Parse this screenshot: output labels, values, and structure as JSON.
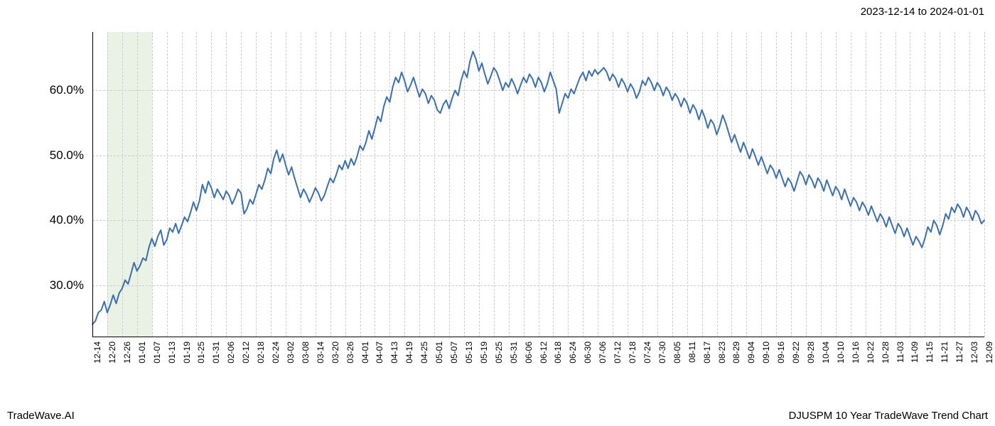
{
  "header": {
    "date_range": "2023-12-14 to 2024-01-01"
  },
  "footer": {
    "left": "TradeWave.AI",
    "right": "DJUSPM 10 Year TradeWave Trend Chart"
  },
  "chart": {
    "type": "line",
    "background_color": "#ffffff",
    "grid_color": "#cccccc",
    "grid_dash": "3,3",
    "axis_color": "#000000",
    "line_color": "#3a6fb0",
    "line_width": 2,
    "highlight_band": {
      "fill": "#d8e8d0",
      "opacity": 0.55,
      "x_start_index": 1,
      "x_end_index": 4
    },
    "y_axis": {
      "min": 22,
      "max": 69,
      "ticks": [
        30,
        40,
        50,
        60
      ],
      "tick_labels": [
        "30.0%",
        "40.0%",
        "50.0%",
        "60.0%"
      ],
      "label_fontsize": 17
    },
    "x_axis": {
      "tick_labels": [
        "12-14",
        "12-20",
        "12-26",
        "01-01",
        "01-07",
        "01-13",
        "01-19",
        "01-25",
        "01-31",
        "02-06",
        "02-12",
        "02-18",
        "02-24",
        "03-02",
        "03-08",
        "03-14",
        "03-20",
        "03-26",
        "04-01",
        "04-07",
        "04-13",
        "04-19",
        "04-25",
        "05-01",
        "05-07",
        "05-13",
        "05-19",
        "05-25",
        "05-31",
        "06-06",
        "06-12",
        "06-18",
        "06-24",
        "06-30",
        "07-06",
        "07-12",
        "07-18",
        "07-24",
        "07-30",
        "08-05",
        "08-11",
        "08-17",
        "08-23",
        "08-29",
        "09-04",
        "09-10",
        "09-16",
        "09-22",
        "09-28",
        "10-04",
        "10-10",
        "10-16",
        "10-22",
        "10-28",
        "11-03",
        "11-09",
        "11-15",
        "11-21",
        "11-27",
        "12-03",
        "12-09"
      ],
      "label_fontsize": 12,
      "label_rotation": -90
    },
    "series": [
      {
        "name": "trend",
        "color": "#3a6fb0",
        "values": [
          24.0,
          24.5,
          25.8,
          26.2,
          27.5,
          25.8,
          27.0,
          28.5,
          27.2,
          28.8,
          29.5,
          30.8,
          30.2,
          31.8,
          33.5,
          32.2,
          33.0,
          34.2,
          33.8,
          35.8,
          37.2,
          36.0,
          37.5,
          38.5,
          36.2,
          37.0,
          38.8,
          38.2,
          39.5,
          38.0,
          39.2,
          40.5,
          39.8,
          41.2,
          42.8,
          41.5,
          43.0,
          45.5,
          44.2,
          46.0,
          45.0,
          43.5,
          44.8,
          44.0,
          43.2,
          44.5,
          43.8,
          42.5,
          43.5,
          44.8,
          44.2,
          41.0,
          41.8,
          43.2,
          42.5,
          44.0,
          45.5,
          44.8,
          46.2,
          48.0,
          47.2,
          49.5,
          50.8,
          49.0,
          50.2,
          48.5,
          47.0,
          48.2,
          46.5,
          45.0,
          43.5,
          44.8,
          44.0,
          42.8,
          43.8,
          45.0,
          44.2,
          43.0,
          43.8,
          45.2,
          46.5,
          45.8,
          47.0,
          48.5,
          47.8,
          49.2,
          48.0,
          49.5,
          48.5,
          49.8,
          51.5,
          50.8,
          52.0,
          53.8,
          52.5,
          54.2,
          56.0,
          55.2,
          57.5,
          59.0,
          58.2,
          60.5,
          62.0,
          61.2,
          62.8,
          61.5,
          59.8,
          60.8,
          62.0,
          60.5,
          59.0,
          60.2,
          59.5,
          58.0,
          59.2,
          58.5,
          57.0,
          56.5,
          57.8,
          58.5,
          57.2,
          58.8,
          60.0,
          59.2,
          61.5,
          63.0,
          62.0,
          64.5,
          66.0,
          64.8,
          63.0,
          64.2,
          62.5,
          61.0,
          62.2,
          63.5,
          62.8,
          61.5,
          60.0,
          61.2,
          60.5,
          61.8,
          60.8,
          59.5,
          60.8,
          62.0,
          61.2,
          62.5,
          61.8,
          60.5,
          62.0,
          61.2,
          59.8,
          61.0,
          62.8,
          61.5,
          60.2,
          56.5,
          58.0,
          59.5,
          58.8,
          60.2,
          59.5,
          60.8,
          62.0,
          62.8,
          61.5,
          63.0,
          62.2,
          63.2,
          62.5,
          63.0,
          63.5,
          62.8,
          61.5,
          62.5,
          61.8,
          60.5,
          61.8,
          61.0,
          59.8,
          61.0,
          60.2,
          58.8,
          59.8,
          61.5,
          60.8,
          62.0,
          61.2,
          60.0,
          61.2,
          60.5,
          59.2,
          60.5,
          59.8,
          58.5,
          59.5,
          58.8,
          57.5,
          58.8,
          58.0,
          56.5,
          57.8,
          57.0,
          55.5,
          57.0,
          55.8,
          54.2,
          55.5,
          54.8,
          53.2,
          54.5,
          56.2,
          55.0,
          53.5,
          52.0,
          53.2,
          51.8,
          50.5,
          52.0,
          50.8,
          49.5,
          51.0,
          49.8,
          48.5,
          49.8,
          48.5,
          47.2,
          48.5,
          47.8,
          46.5,
          47.8,
          46.5,
          45.2,
          46.5,
          45.8,
          44.5,
          46.0,
          47.5,
          46.8,
          45.5,
          47.0,
          46.2,
          45.0,
          46.5,
          45.8,
          44.5,
          46.2,
          45.0,
          43.8,
          45.2,
          44.5,
          43.2,
          44.8,
          43.5,
          42.2,
          43.5,
          42.8,
          41.5,
          42.8,
          42.0,
          40.8,
          42.2,
          41.0,
          39.8,
          41.0,
          40.2,
          39.0,
          40.5,
          39.2,
          38.0,
          39.5,
          38.8,
          37.5,
          38.8,
          37.5,
          36.2,
          37.5,
          36.8,
          35.8,
          37.2,
          39.0,
          38.2,
          40.0,
          39.2,
          37.8,
          39.2,
          41.0,
          40.2,
          42.0,
          41.2,
          42.5,
          41.8,
          40.5,
          42.0,
          41.2,
          40.0,
          41.5,
          40.8,
          39.5,
          40.0
        ]
      }
    ]
  }
}
